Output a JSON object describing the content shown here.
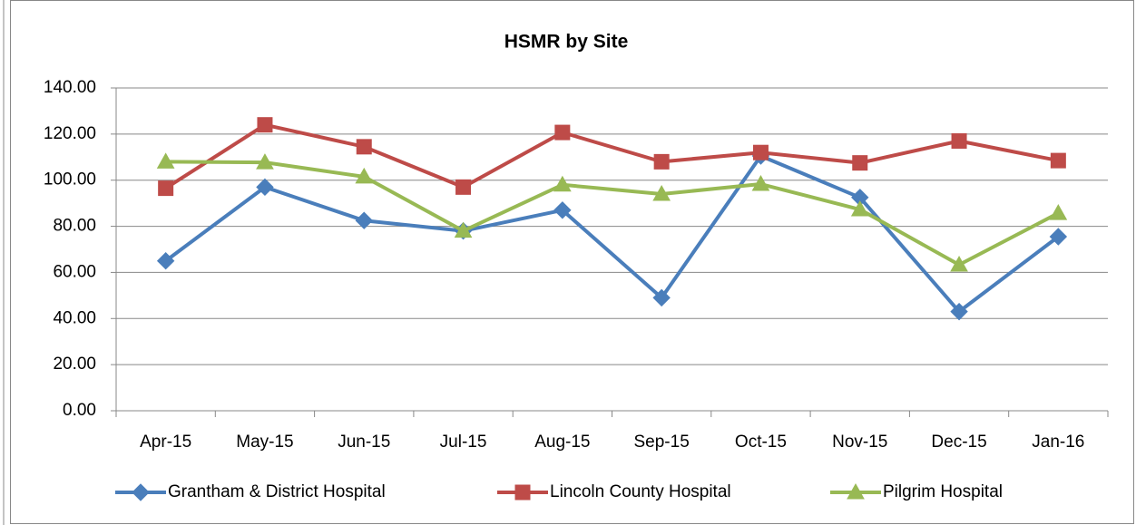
{
  "chart_data": {
    "type": "line",
    "title": "HSMR by Site",
    "categories": [
      "Apr-15",
      "May-15",
      "Jun-15",
      "Jul-15",
      "Aug-15",
      "Sep-15",
      "Oct-15",
      "Nov-15",
      "Dec-15",
      "Jan-16"
    ],
    "series": [
      {
        "name": "Grantham & District Hospital",
        "color": "#4a7ebb",
        "marker": "diamond",
        "values": [
          65,
          97,
          82.5,
          78,
          87,
          49,
          110.5,
          92.5,
          43,
          75.5
        ]
      },
      {
        "name": "Lincoln County Hospital",
        "color": "#be4b48",
        "marker": "square",
        "values": [
          96.5,
          124,
          114.5,
          97,
          120.7,
          108,
          112,
          107.5,
          117,
          108.5
        ]
      },
      {
        "name": "Pilgrim Hospital",
        "color": "#98b954",
        "marker": "triangle",
        "values": [
          108,
          107.7,
          101.5,
          78,
          98,
          94,
          98.3,
          87.3,
          63.3,
          85.7
        ]
      }
    ],
    "ylim": [
      0,
      140
    ],
    "yticks": [
      {
        "value": 0,
        "label": "0.00"
      },
      {
        "value": 20,
        "label": "20.00"
      },
      {
        "value": 40,
        "label": "40.00"
      },
      {
        "value": 60,
        "label": "60.00"
      },
      {
        "value": 80,
        "label": "80.00"
      },
      {
        "value": 100,
        "label": "100.00"
      },
      {
        "value": 120,
        "label": "120.00"
      },
      {
        "value": 140,
        "label": "140.00"
      }
    ],
    "grid": true,
    "legend": "bottom"
  }
}
